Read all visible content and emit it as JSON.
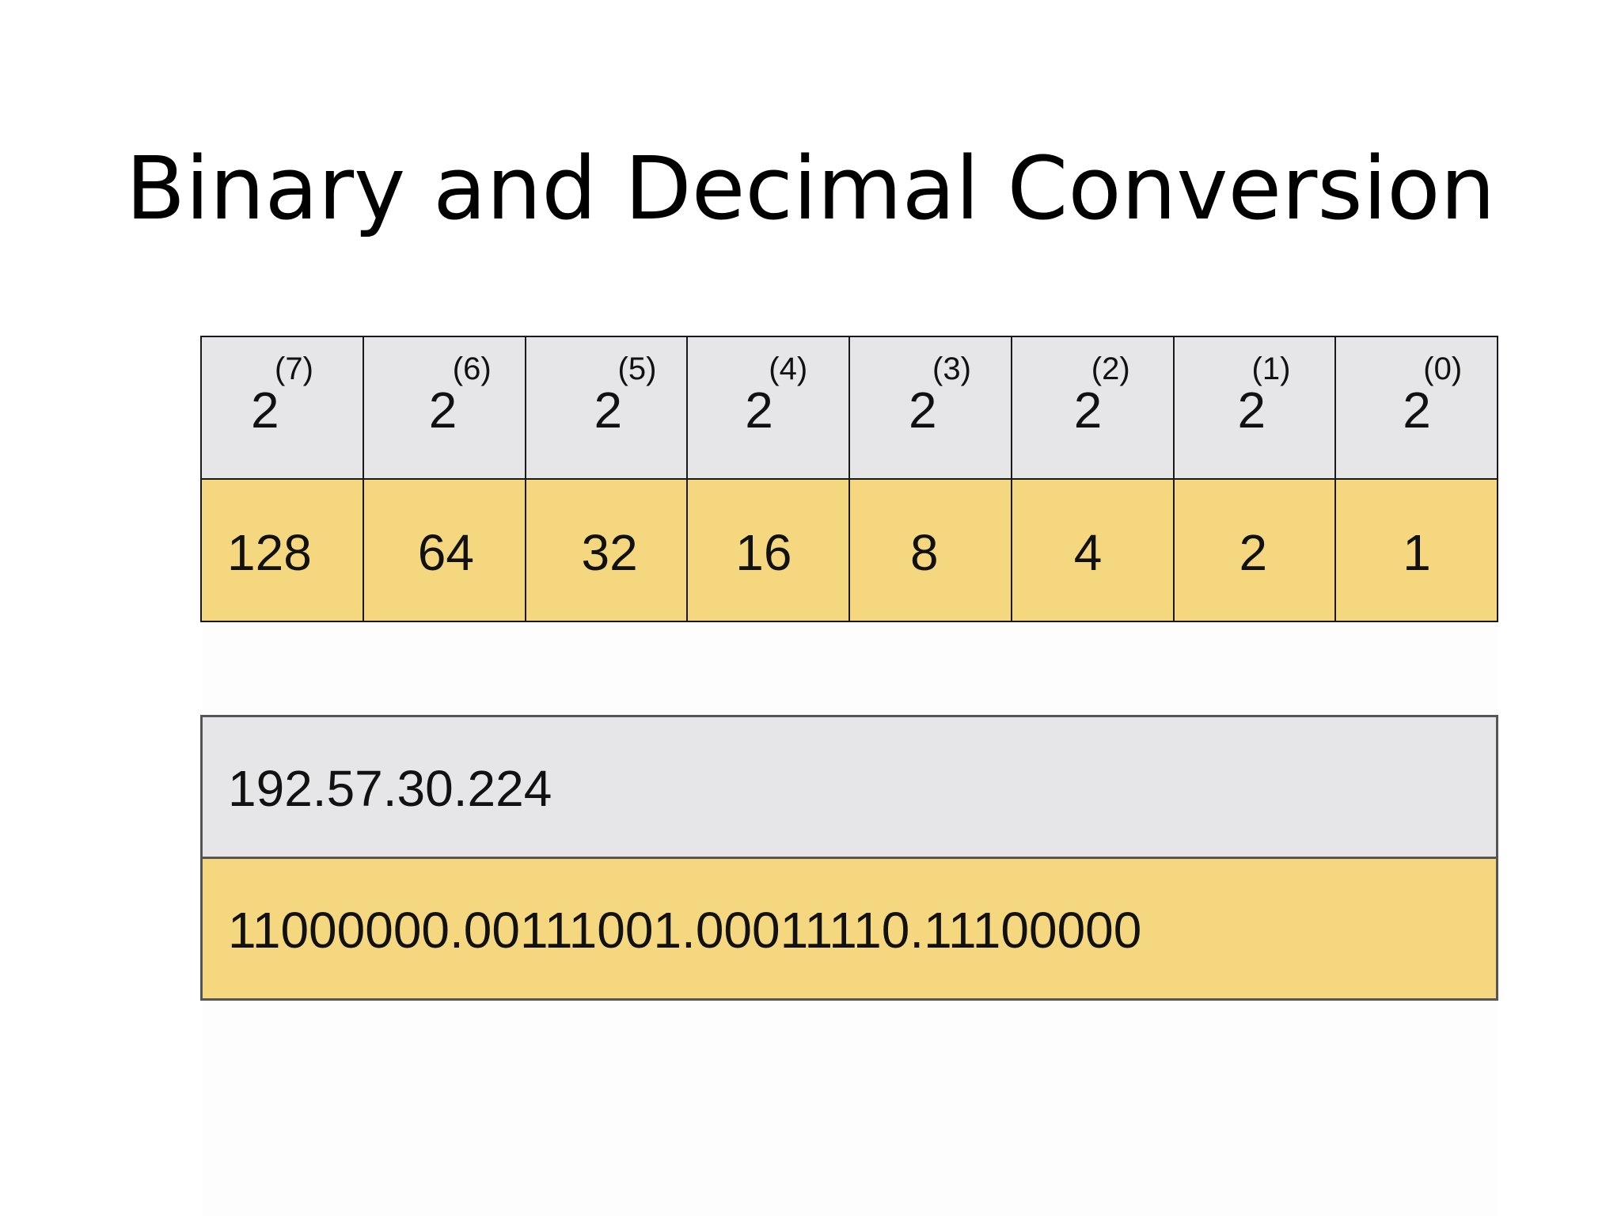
{
  "slide": {
    "title": "Binary and Decimal Conversion"
  },
  "powers_table": {
    "powers": [
      {
        "base": "2",
        "exponent": "(7)",
        "value": "128"
      },
      {
        "base": "2",
        "exponent": "(6)",
        "value": "64"
      },
      {
        "base": "2",
        "exponent": "(5)",
        "value": "32"
      },
      {
        "base": "2",
        "exponent": "(4)",
        "value": "16"
      },
      {
        "base": "2",
        "exponent": "(3)",
        "value": "8"
      },
      {
        "base": "2",
        "exponent": "(2)",
        "value": "4"
      },
      {
        "base": "2",
        "exponent": "(1)",
        "value": "2"
      },
      {
        "base": "2",
        "exponent": "(0)",
        "value": "1"
      }
    ]
  },
  "example": {
    "decimal_address": "192.57.30.224",
    "binary_address": "11000000.00111001.00011110.11100000"
  },
  "colors": {
    "header_gray": "#e6e5e7",
    "value_yellow": "#f4d77f",
    "border": "#1a1a1a"
  }
}
